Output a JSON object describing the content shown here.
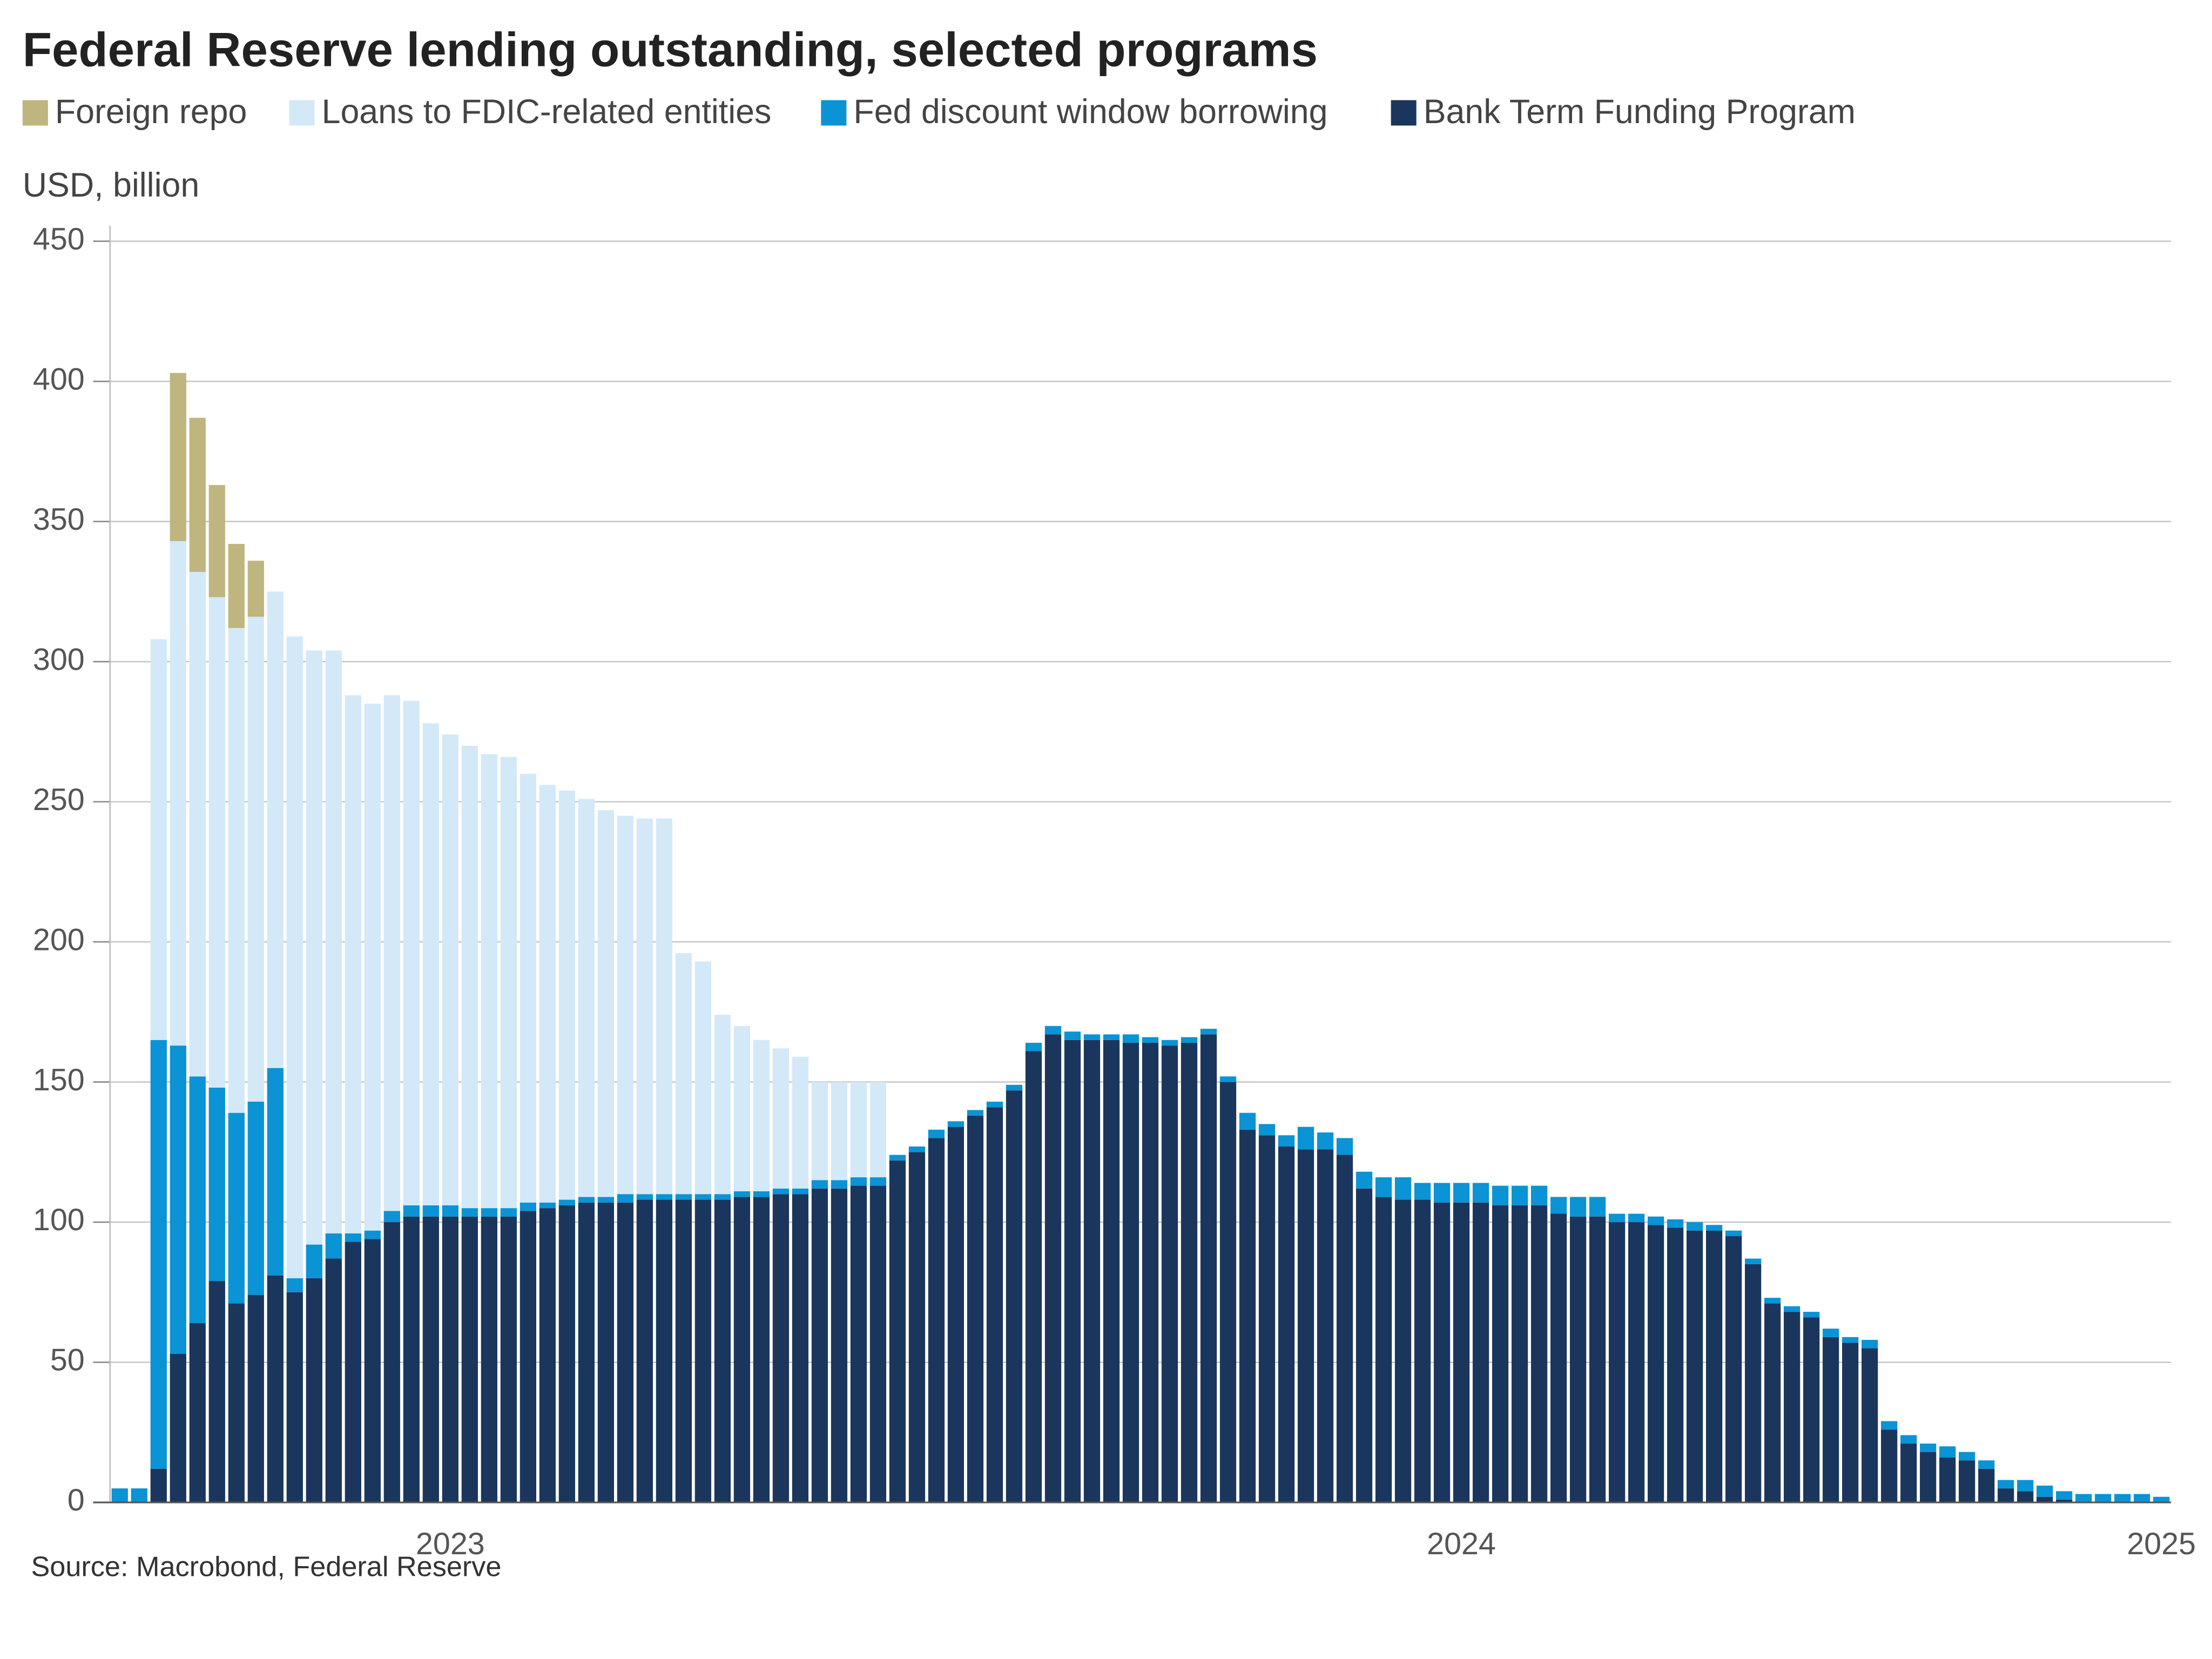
{
  "chart_data": {
    "type": "stacked-bar",
    "title": "Federal Reserve lending outstanding, selected programs",
    "y_label": "USD, billion",
    "source": "Source: Macrobond, Federal Reserve",
    "categories": [
      null,
      null,
      null,
      null,
      null,
      null,
      null,
      null,
      null,
      null,
      null,
      null,
      null,
      null,
      null,
      null,
      null,
      "2023",
      null,
      null,
      null,
      null,
      null,
      null,
      null,
      null,
      null,
      null,
      null,
      null,
      null,
      null,
      null,
      null,
      null,
      null,
      null,
      null,
      null,
      null,
      null,
      null,
      null,
      null,
      null,
      null,
      null,
      null,
      null,
      null,
      null,
      null,
      null,
      null,
      null,
      null,
      null,
      null,
      null,
      null,
      null,
      null,
      null,
      null,
      null,
      null,
      null,
      null,
      null,
      "2024",
      null,
      null,
      null,
      null,
      null,
      null,
      null,
      null,
      null,
      null,
      null,
      null,
      null,
      null,
      null,
      null,
      null,
      null,
      null,
      null,
      null,
      null,
      null,
      null,
      null,
      null,
      null,
      null,
      null,
      null,
      null,
      null,
      null,
      null,
      null,
      "2025"
    ],
    "series": [
      {
        "name": "Bank Term Funding Program",
        "color": "#1b365d",
        "values": [
          0,
          0,
          12,
          53,
          64,
          79,
          71,
          74,
          81,
          75,
          80,
          87,
          93,
          94,
          100,
          102,
          102,
          102,
          102,
          102,
          102,
          104,
          105,
          106,
          107,
          107,
          107,
          108,
          108,
          108,
          108,
          108,
          109,
          109,
          110,
          110,
          112,
          112,
          113,
          113,
          122,
          125,
          130,
          134,
          138,
          141,
          147,
          161,
          167,
          165,
          165,
          165,
          164,
          164,
          163,
          164,
          167,
          150,
          133,
          131,
          127,
          126,
          126,
          124,
          112,
          109,
          108,
          108,
          107,
          107,
          107,
          106,
          106,
          106,
          103,
          102,
          102,
          100,
          100,
          99,
          98,
          97,
          97,
          95,
          85,
          71,
          68,
          66,
          59,
          57,
          55,
          26,
          21,
          18,
          16,
          15,
          12,
          5,
          4,
          2,
          1,
          0,
          0,
          0,
          0,
          0
        ]
      },
      {
        "name": "Fed discount window borrowing",
        "color": "#0a93d5",
        "values": [
          5,
          5,
          153,
          110,
          88,
          69,
          68,
          69,
          74,
          5,
          12,
          9,
          3,
          3,
          4,
          4,
          4,
          4,
          3,
          3,
          3,
          3,
          2,
          2,
          2,
          2,
          3,
          2,
          2,
          2,
          2,
          2,
          2,
          2,
          2,
          2,
          3,
          3,
          3,
          3,
          2,
          2,
          3,
          2,
          2,
          2,
          2,
          3,
          3,
          3,
          2,
          2,
          3,
          2,
          2,
          2,
          2,
          2,
          6,
          4,
          4,
          8,
          6,
          6,
          6,
          7,
          8,
          6,
          7,
          7,
          7,
          7,
          7,
          7,
          6,
          7,
          7,
          3,
          3,
          3,
          3,
          3,
          2,
          2,
          2,
          2,
          2,
          2,
          3,
          2,
          3,
          3,
          3,
          3,
          4,
          3,
          3,
          3,
          4,
          4,
          3,
          3,
          3,
          3,
          3,
          2
        ]
      },
      {
        "name": "Loans to FDIC-related entities",
        "color": "#d4e9f7",
        "values": [
          null,
          null,
          143,
          180,
          180,
          175,
          173,
          173,
          170,
          229,
          212,
          208,
          192,
          188,
          184,
          180,
          172,
          168,
          165,
          162,
          161,
          153,
          149,
          146,
          142,
          138,
          135,
          134,
          134,
          86,
          83,
          64,
          59,
          54,
          50,
          47,
          35,
          35,
          34,
          34,
          null,
          null,
          null,
          null,
          null,
          null,
          null,
          null,
          null,
          null,
          null,
          null,
          null,
          null,
          null,
          null,
          null,
          null,
          null,
          null,
          null,
          null,
          null,
          null,
          null,
          null,
          null,
          null,
          null,
          null,
          null,
          null,
          null,
          null,
          null,
          null,
          null,
          null,
          null,
          null,
          null,
          null,
          null,
          null,
          null,
          null,
          null,
          null,
          null,
          null,
          null,
          null,
          null,
          null,
          null,
          null,
          null,
          null,
          null,
          null,
          null,
          null,
          null,
          null,
          null,
          null
        ]
      },
      {
        "name": "Foreign repo",
        "color": "#bfb57f",
        "values": [
          null,
          null,
          null,
          60,
          55,
          40,
          30,
          20,
          null,
          null,
          null,
          null,
          null,
          null,
          null,
          null,
          null,
          null,
          null,
          null,
          null,
          null,
          null,
          null,
          null,
          null,
          null,
          null,
          null,
          null,
          null,
          null,
          null,
          null,
          null,
          null,
          null,
          null,
          null,
          null,
          null,
          null,
          null,
          null,
          null,
          null,
          null,
          null,
          null,
          null,
          null,
          null,
          null,
          null,
          null,
          null,
          null,
          null,
          null,
          null,
          null,
          null,
          null,
          null,
          null,
          null,
          null,
          null,
          null,
          null,
          null,
          null,
          null,
          null,
          null,
          null,
          null,
          null,
          null,
          null,
          null,
          null,
          null,
          null,
          null,
          null,
          null,
          null,
          null,
          null,
          null,
          null,
          null,
          null,
          null,
          null,
          null,
          null,
          null,
          null,
          null,
          null,
          null,
          null,
          null,
          null
        ]
      }
    ],
    "ylim": [
      0,
      450
    ],
    "yticks": [
      0,
      50,
      100,
      150,
      200,
      250,
      300,
      350,
      400,
      450
    ],
    "grid": true
  }
}
